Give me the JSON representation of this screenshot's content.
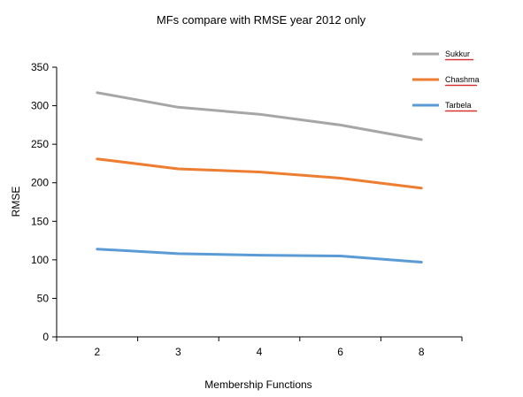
{
  "chart_data": {
    "type": "line",
    "title": "MFs compare with RMSE year 2012 only",
    "xlabel": "Membership Functions",
    "ylabel": "RMSE",
    "categories": [
      "2",
      "3",
      "4",
      "6",
      "8"
    ],
    "ylim": [
      0,
      350
    ],
    "yticks": [
      0,
      50,
      100,
      150,
      200,
      250,
      300,
      350
    ],
    "grid": false,
    "legend_position": "top-right",
    "series": [
      {
        "name": "Sukkur",
        "color": "#a6a6a6",
        "values": [
          317,
          298,
          289,
          275,
          256
        ]
      },
      {
        "name": "Chashma",
        "color": "#ed7d31",
        "values": [
          231,
          218,
          214,
          206,
          193
        ]
      },
      {
        "name": "Tarbela",
        "color": "#5b9bd5",
        "values": [
          114,
          108,
          106,
          105,
          97
        ]
      }
    ]
  }
}
